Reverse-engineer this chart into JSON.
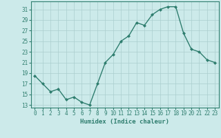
{
  "x": [
    0,
    1,
    2,
    3,
    4,
    5,
    6,
    7,
    8,
    9,
    10,
    11,
    12,
    13,
    14,
    15,
    16,
    17,
    18,
    19,
    20,
    21,
    22,
    23
  ],
  "y": [
    18.5,
    17.0,
    15.5,
    16.0,
    14.0,
    14.5,
    13.5,
    13.0,
    17.0,
    21.0,
    22.5,
    25.0,
    26.0,
    28.5,
    28.0,
    30.0,
    31.0,
    31.5,
    31.5,
    26.5,
    23.5,
    23.0,
    21.5,
    21.0
  ],
  "line_color": "#2e7d6e",
  "marker": "D",
  "marker_size": 2,
  "bg_color": "#cceaea",
  "grid_color": "#aacece",
  "xlabel": "Humidex (Indice chaleur)",
  "xlabel_fontsize": 6.5,
  "yticks": [
    13,
    15,
    17,
    19,
    21,
    23,
    25,
    27,
    29,
    31
  ],
  "xticks": [
    0,
    1,
    2,
    3,
    4,
    5,
    6,
    7,
    8,
    9,
    10,
    11,
    12,
    13,
    14,
    15,
    16,
    17,
    18,
    19,
    20,
    21,
    22,
    23
  ],
  "ylim": [
    12.5,
    32.5
  ],
  "xlim": [
    -0.5,
    23.5
  ],
  "tick_fontsize": 5.5,
  "tick_color": "#2e7d6e",
  "axis_color": "#2e7d6e",
  "linewidth": 1.0
}
